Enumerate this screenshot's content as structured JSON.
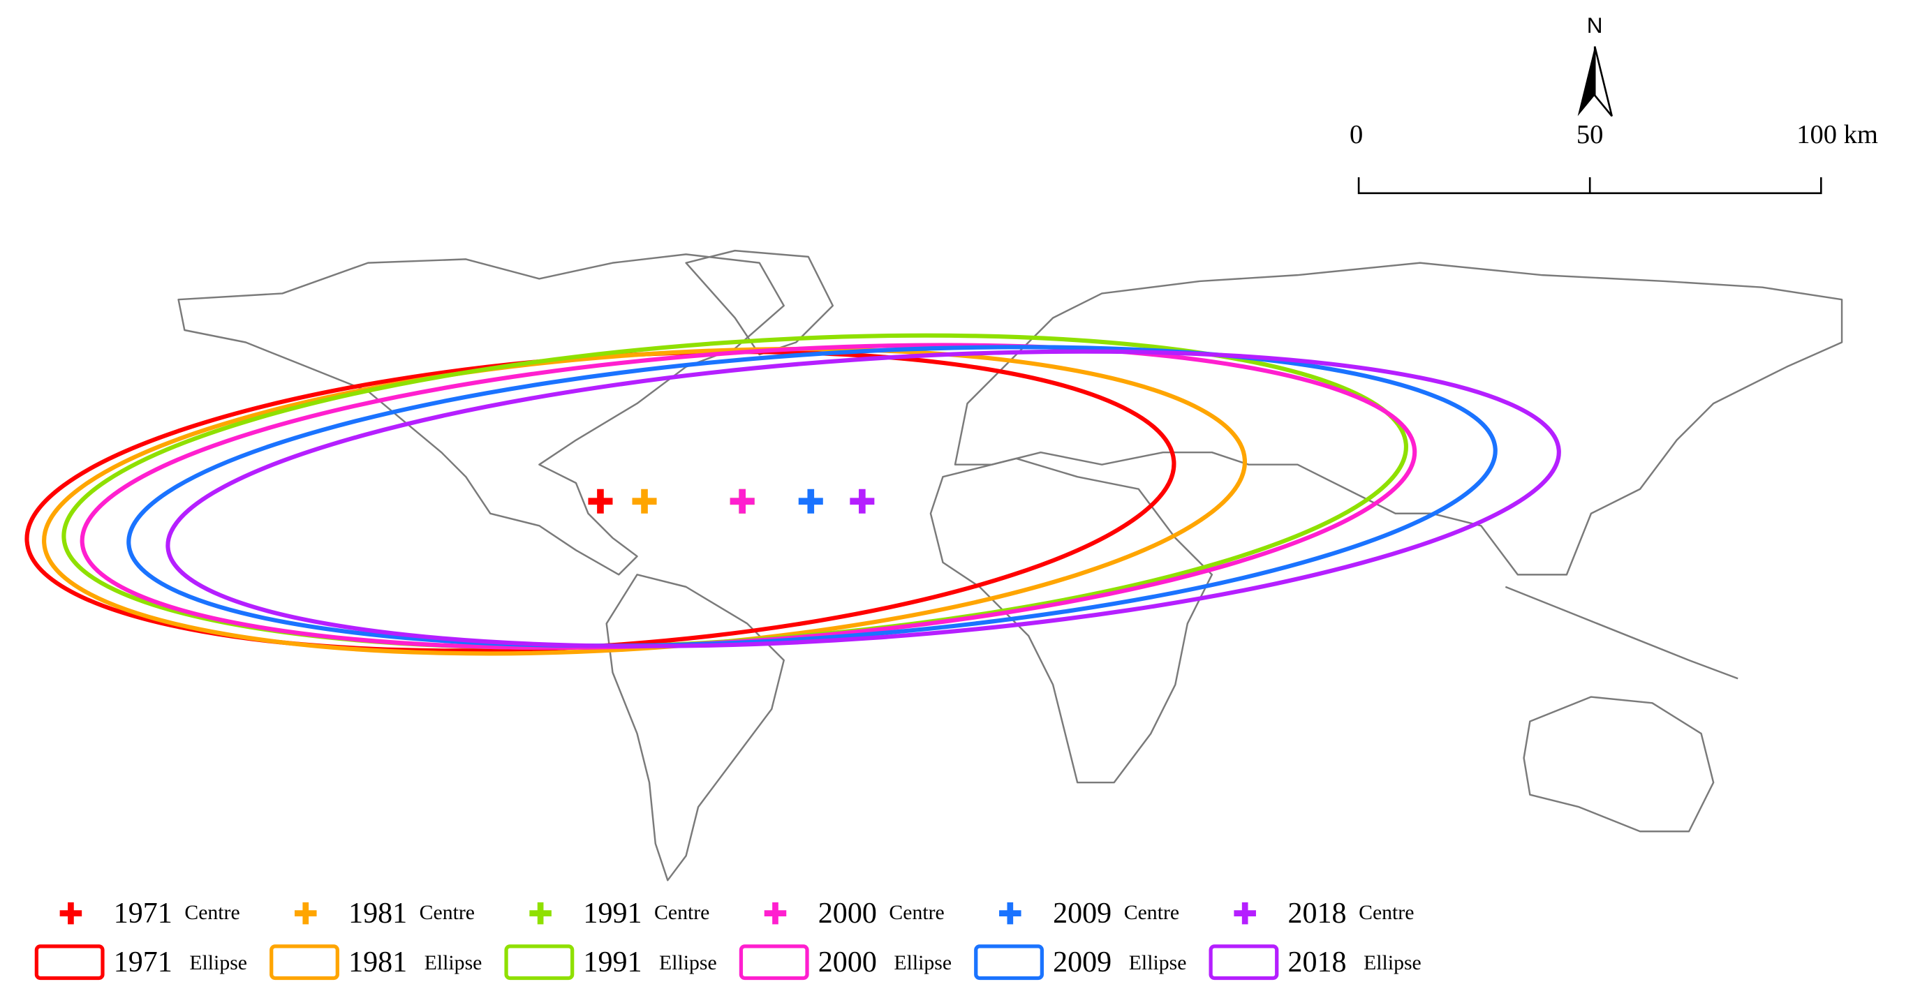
{
  "map": {
    "north_label": "N",
    "scale_bar": {
      "labels": [
        "0",
        "50",
        "100 km"
      ]
    },
    "legend": [
      {
        "year": "1971",
        "centre_label": "Centre",
        "ellipse_label": "Ellipse",
        "color": "#ff0000"
      },
      {
        "year": "1981",
        "centre_label": "Centre",
        "ellipse_label": "Ellipse",
        "color": "#ffa500"
      },
      {
        "year": "1991",
        "centre_label": "Centre",
        "ellipse_label": "Ellipse",
        "color": "#8fe000"
      },
      {
        "year": "2000",
        "centre_label": "Centre",
        "ellipse_label": "Ellipse",
        "color": "#ff1fcf"
      },
      {
        "year": "2009",
        "centre_label": "Centre",
        "ellipse_label": "Ellipse",
        "color": "#1a73ff"
      },
      {
        "year": "2018",
        "centre_label": "Centre",
        "ellipse_label": "Ellipse",
        "color": "#b51fff"
      }
    ]
  }
}
